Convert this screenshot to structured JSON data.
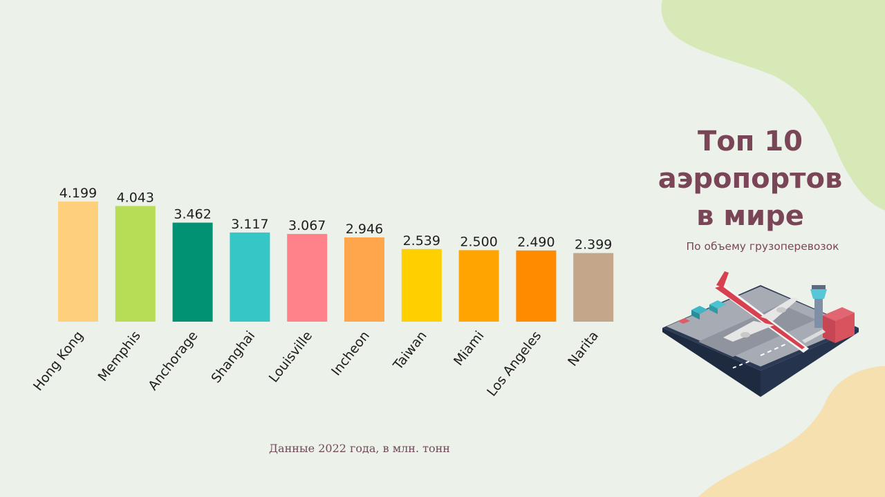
{
  "title": {
    "lines": [
      "Топ 10",
      "аэропортов",
      "в мире"
    ]
  },
  "subtitle": "По объему грузоперевозок",
  "footnote": "Данные 2022 года, в млн. тонн",
  "colors": {
    "background": "#ecf1ea",
    "title": "#7a4556",
    "blob_green": "#d8e9b8",
    "blob_orange": "#f6e0b0"
  },
  "chart_data": {
    "type": "bar",
    "title": "",
    "xlabel": "",
    "ylabel": "",
    "grid": false,
    "categories": [
      "Hong Kong",
      "Memphis",
      "Anchorage",
      "Shanghai",
      "Louisville",
      "Incheon",
      "Taiwan",
      "Miami",
      "Los Angeles",
      "Narita"
    ],
    "values": [
      4.199,
      4.043,
      3.462,
      3.117,
      3.067,
      2.946,
      2.539,
      2.5,
      2.49,
      2.399
    ],
    "value_labels": [
      "4.199",
      "4.043",
      "3.462",
      "3.117",
      "3.067",
      "2.946",
      "2.539",
      "2.500",
      "2.490",
      "2.399"
    ],
    "bar_colors": [
      "#ffd07c",
      "#b7dc56",
      "#009272",
      "#36c6c6",
      "#ff8189",
      "#ffa54c",
      "#ffd000",
      "#ffa400",
      "#ff8c00",
      "#c4a78b"
    ],
    "ylim": [
      0,
      4.199
    ]
  }
}
